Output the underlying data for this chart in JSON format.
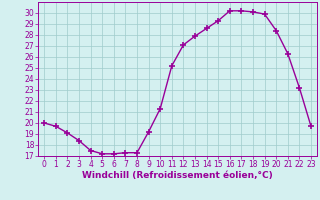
{
  "x": [
    0,
    1,
    2,
    3,
    4,
    5,
    6,
    7,
    8,
    9,
    10,
    11,
    12,
    13,
    14,
    15,
    16,
    17,
    18,
    19,
    20,
    21,
    22,
    23
  ],
  "y": [
    20.0,
    19.7,
    19.1,
    18.4,
    17.5,
    17.2,
    17.2,
    17.3,
    17.3,
    19.2,
    21.3,
    25.2,
    27.1,
    27.9,
    28.6,
    29.3,
    30.2,
    30.2,
    30.1,
    29.9,
    28.4,
    26.3,
    23.2,
    19.7
  ],
  "line_color": "#990099",
  "marker": "+",
  "marker_size": 4,
  "marker_lw": 1.2,
  "line_width": 1.0,
  "bg_color": "#d4f0f0",
  "grid_color": "#a0cccc",
  "xlabel": "Windchill (Refroidissement éolien,°C)",
  "xlabel_color": "#990099",
  "tick_color": "#990099",
  "spine_color": "#990099",
  "ylim": [
    17,
    31
  ],
  "xlim": [
    -0.5,
    23.5
  ],
  "yticks": [
    17,
    18,
    19,
    20,
    21,
    22,
    23,
    24,
    25,
    26,
    27,
    28,
    29,
    30
  ],
  "xticks": [
    0,
    1,
    2,
    3,
    4,
    5,
    6,
    7,
    8,
    9,
    10,
    11,
    12,
    13,
    14,
    15,
    16,
    17,
    18,
    19,
    20,
    21,
    22,
    23
  ],
  "tick_fontsize": 5.5,
  "xlabel_fontsize": 6.5,
  "xlabel_fontweight": "bold"
}
